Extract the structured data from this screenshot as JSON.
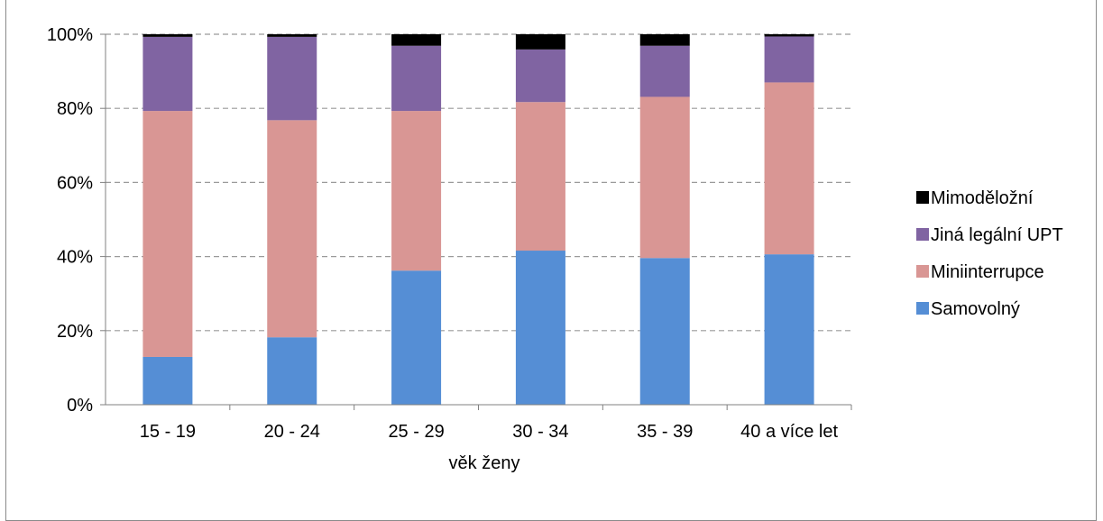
{
  "chart_data": {
    "type": "bar",
    "stacked": true,
    "normalized_percent": true,
    "categories": [
      "15 - 19",
      "20 - 24",
      "25 - 29",
      "30 - 34",
      "35 - 39",
      "40 a více let"
    ],
    "series": [
      {
        "name": "Samovolný",
        "color": "#558ED5",
        "values": [
          12.9,
          18.2,
          36.2,
          41.6,
          39.6,
          40.6
        ]
      },
      {
        "name": "Miniinterrupce",
        "color": "#D99694",
        "values": [
          66.4,
          58.6,
          43.1,
          40.1,
          43.5,
          46.4
        ]
      },
      {
        "name": "Jiná legální UPT",
        "color": "#8064A2",
        "values": [
          20.0,
          22.5,
          17.6,
          14.2,
          13.8,
          12.4
        ]
      },
      {
        "name": "Mimoděložní",
        "color": "#000000",
        "values": [
          0.7,
          0.7,
          3.1,
          4.1,
          3.1,
          0.6
        ]
      }
    ],
    "y_ticks": [
      "0%",
      "20%",
      "40%",
      "60%",
      "80%",
      "100%"
    ],
    "ylim": [
      0,
      100
    ],
    "xlabel": "věk ženy",
    "ylabel": "",
    "grid": "horizontal dashed",
    "legend_position": "right",
    "legend_order": [
      "Mimoděložní",
      "Jiná legální UPT",
      "Miniinterrupce",
      "Samovolný"
    ]
  }
}
